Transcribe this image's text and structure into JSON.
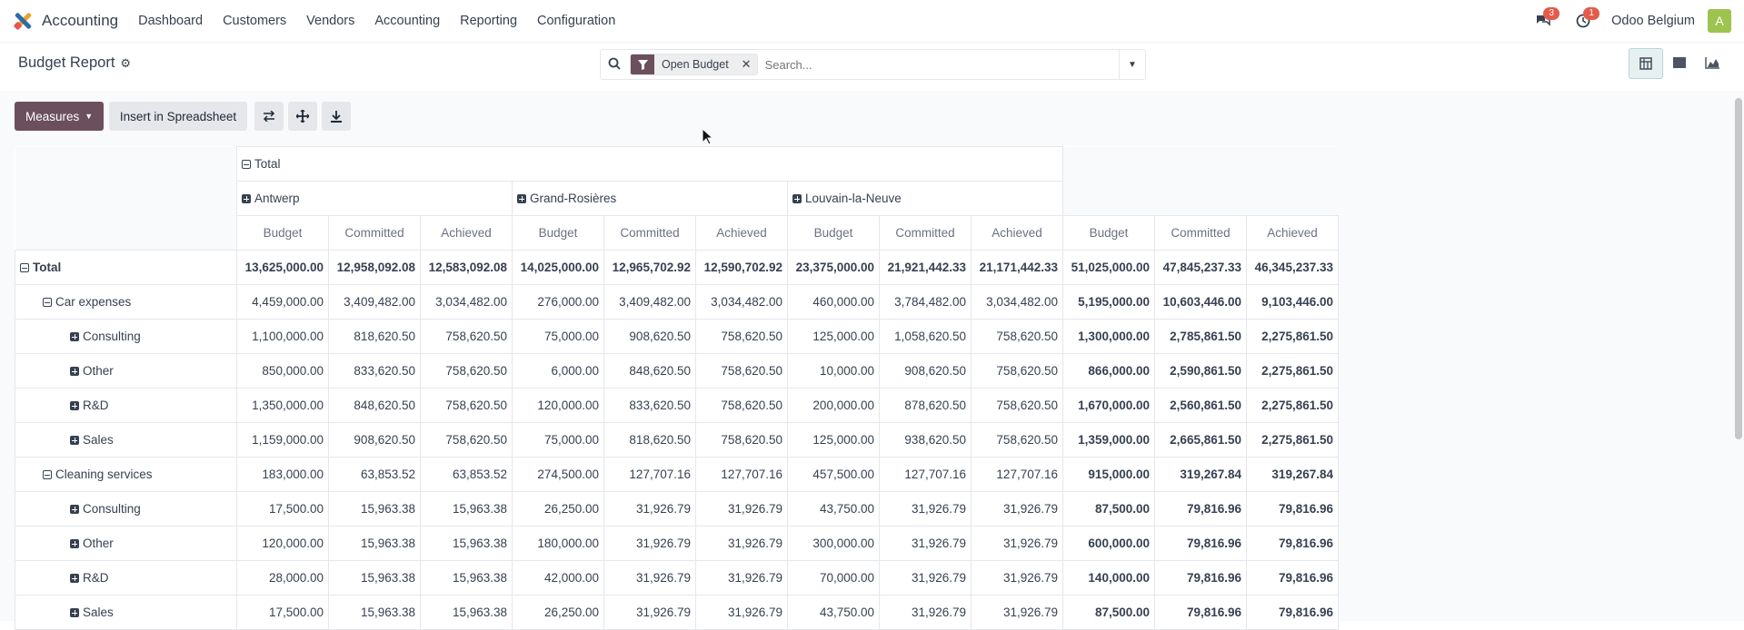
{
  "navbar": {
    "app_name": "Accounting",
    "menu": [
      "Dashboard",
      "Customers",
      "Vendors",
      "Accounting",
      "Reporting",
      "Configuration"
    ],
    "messages_count": "3",
    "activities_count": "1",
    "company": "Odoo Belgium",
    "avatar_letter": "A"
  },
  "control_panel": {
    "title": "Budget Report",
    "search": {
      "facet_label": "Open Budget",
      "placeholder": "Search..."
    }
  },
  "actions": {
    "measures_label": "Measures",
    "insert_label": "Insert in Spreadsheet"
  },
  "pivot": {
    "total_label": "Total",
    "col_groups": [
      "Antwerp",
      "Grand-Rosières",
      "Louvain-la-Neuve"
    ],
    "measures": [
      "Budget",
      "Committed",
      "Achieved"
    ],
    "rows": [
      {
        "label": "Total",
        "level": 0,
        "expanded": true,
        "values": [
          "13,625,000.00",
          "12,958,092.08",
          "12,583,092.08",
          "14,025,000.00",
          "12,965,702.92",
          "12,590,702.92",
          "23,375,000.00",
          "21,921,442.33",
          "21,171,442.33",
          "51,025,000.00",
          "47,845,237.33",
          "46,345,237.33"
        ]
      },
      {
        "label": "Car expenses",
        "level": 1,
        "expanded": true,
        "values": [
          "4,459,000.00",
          "3,409,482.00",
          "3,034,482.00",
          "276,000.00",
          "3,409,482.00",
          "3,034,482.00",
          "460,000.00",
          "3,784,482.00",
          "3,034,482.00",
          "5,195,000.00",
          "10,603,446.00",
          "9,103,446.00"
        ]
      },
      {
        "label": "Consulting",
        "level": 2,
        "expanded": false,
        "values": [
          "1,100,000.00",
          "818,620.50",
          "758,620.50",
          "75,000.00",
          "908,620.50",
          "758,620.50",
          "125,000.00",
          "1,058,620.50",
          "758,620.50",
          "1,300,000.00",
          "2,785,861.50",
          "2,275,861.50"
        ]
      },
      {
        "label": "Other",
        "level": 2,
        "expanded": false,
        "values": [
          "850,000.00",
          "833,620.50",
          "758,620.50",
          "6,000.00",
          "848,620.50",
          "758,620.50",
          "10,000.00",
          "908,620.50",
          "758,620.50",
          "866,000.00",
          "2,590,861.50",
          "2,275,861.50"
        ]
      },
      {
        "label": "R&D",
        "level": 2,
        "expanded": false,
        "values": [
          "1,350,000.00",
          "848,620.50",
          "758,620.50",
          "120,000.00",
          "833,620.50",
          "758,620.50",
          "200,000.00",
          "878,620.50",
          "758,620.50",
          "1,670,000.00",
          "2,560,861.50",
          "2,275,861.50"
        ]
      },
      {
        "label": "Sales",
        "level": 2,
        "expanded": false,
        "values": [
          "1,159,000.00",
          "908,620.50",
          "758,620.50",
          "75,000.00",
          "818,620.50",
          "758,620.50",
          "125,000.00",
          "938,620.50",
          "758,620.50",
          "1,359,000.00",
          "2,665,861.50",
          "2,275,861.50"
        ]
      },
      {
        "label": "Cleaning services",
        "level": 1,
        "expanded": true,
        "values": [
          "183,000.00",
          "63,853.52",
          "63,853.52",
          "274,500.00",
          "127,707.16",
          "127,707.16",
          "457,500.00",
          "127,707.16",
          "127,707.16",
          "915,000.00",
          "319,267.84",
          "319,267.84"
        ]
      },
      {
        "label": "Consulting",
        "level": 2,
        "expanded": false,
        "values": [
          "17,500.00",
          "15,963.38",
          "15,963.38",
          "26,250.00",
          "31,926.79",
          "31,926.79",
          "43,750.00",
          "31,926.79",
          "31,926.79",
          "87,500.00",
          "79,816.96",
          "79,816.96"
        ]
      },
      {
        "label": "Other",
        "level": 2,
        "expanded": false,
        "values": [
          "120,000.00",
          "15,963.38",
          "15,963.38",
          "180,000.00",
          "31,926.79",
          "31,926.79",
          "300,000.00",
          "31,926.79",
          "31,926.79",
          "600,000.00",
          "79,816.96",
          "79,816.96"
        ]
      },
      {
        "label": "R&D",
        "level": 2,
        "expanded": false,
        "values": [
          "28,000.00",
          "15,963.38",
          "15,963.38",
          "42,000.00",
          "31,926.79",
          "31,926.79",
          "70,000.00",
          "31,926.79",
          "31,926.79",
          "140,000.00",
          "79,816.96",
          "79,816.96"
        ]
      },
      {
        "label": "Sales",
        "level": 2,
        "expanded": false,
        "values": [
          "17,500.00",
          "15,963.38",
          "15,963.38",
          "26,250.00",
          "31,926.79",
          "31,926.79",
          "43,750.00",
          "31,926.79",
          "31,926.79",
          "87,500.00",
          "79,816.96",
          "79,816.96"
        ]
      }
    ]
  },
  "colors": {
    "primary": "#6b4f5d",
    "badge": "#e35c4b",
    "avatar": "#9dc44f"
  },
  "icons": {
    "app_logo": "odoo-accounting-logo",
    "messages": "chat-icon",
    "activities": "clock-icon",
    "search": "search-icon",
    "filter": "funnel-icon",
    "views": [
      "pivot-icon",
      "list-icon",
      "graph-icon"
    ],
    "actions": [
      "flip-axis-icon",
      "expand-all-icon",
      "download-icon"
    ]
  }
}
